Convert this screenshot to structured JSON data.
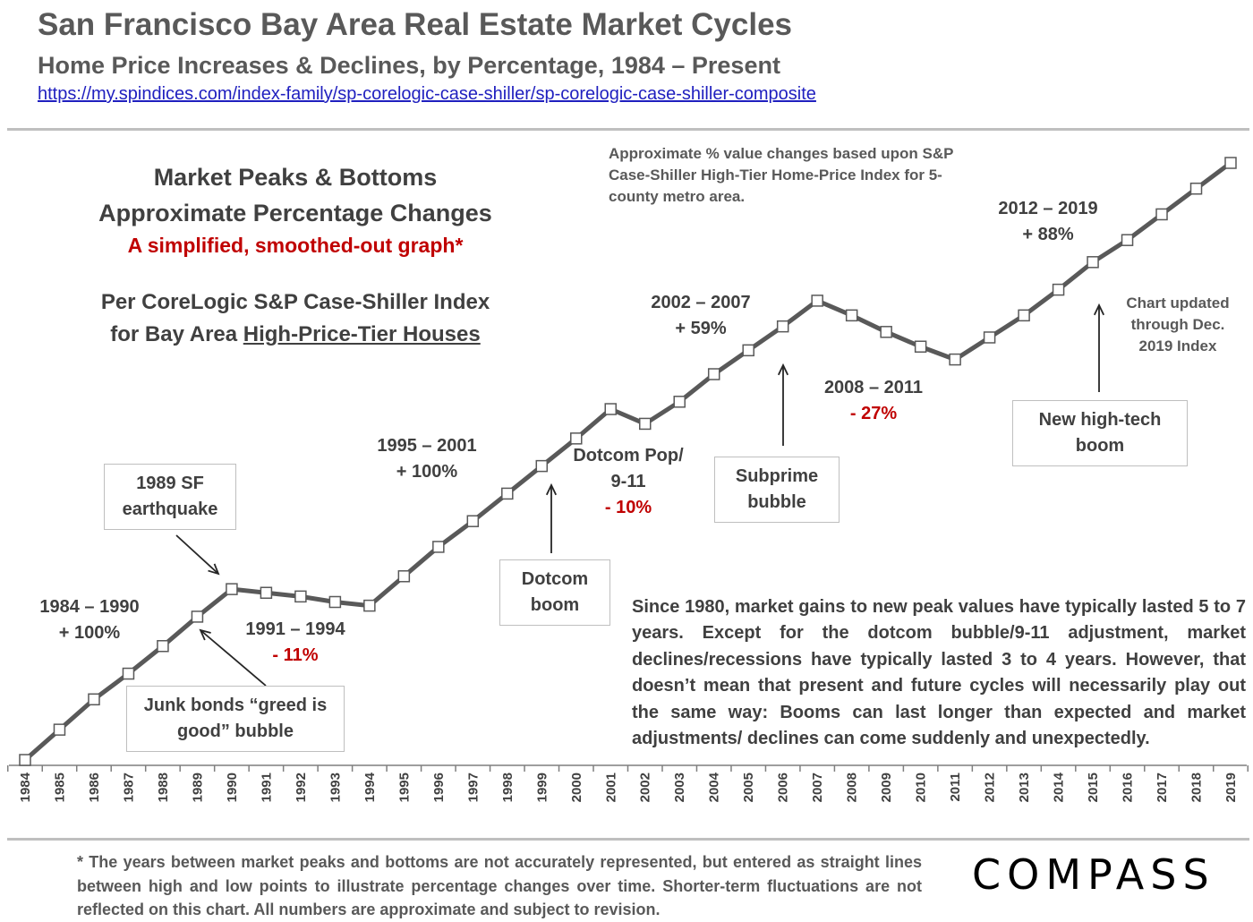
{
  "header": {
    "title": "San Francisco Bay Area Real Estate Market Cycles",
    "subtitle": "Home Price Increases & Declines, by Percentage, 1984 – Present",
    "link": "https://my.spindices.com/index-family/sp-corelogic-case-shiller/sp-corelogic-case-shiller-composite"
  },
  "heading_block": {
    "line1": "Market Peaks & Bottoms",
    "line2": "Approximate Percentage Changes",
    "line3": "A simplified, smoothed-out graph*",
    "line4": "Per CoreLogic S&P Case-Shiller Index",
    "line5_prefix": "for Bay Area ",
    "line5_underlined": "High-Price-Tier Houses"
  },
  "notes": {
    "method": "Approximate % value changes based upon S&P Case-Shiller High-Tier Home-Price Index for 5-county metro area.",
    "updated": "Chart updated through Dec. 2019 Index",
    "summary": "Since 1980, market gains to new peak values have typically lasted 5 to 7 years. Except for the dotcom bubble/9-11 adjustment, market declines/recessions have typically lasted 3 to 4 years. However, that doesn’t mean that present and future cycles will necessarily play out the same way: Booms can last longer than expected and market adjustments/ declines can come suddenly and unexpectedly.",
    "footnote": "* The years between market peaks and bottoms are not accurately represented, but entered as straight lines between high and low points to illustrate percentage changes over time. Shorter-term fluctuations are not reflected on this chart. All numbers are approximate and subject to revision."
  },
  "logo": "COMPASS",
  "cycles": {
    "c1": {
      "years": "1984 – 1990",
      "pct": "+ 100%"
    },
    "c2": {
      "years": "1991 – 1994",
      "pct": "- 11%"
    },
    "c3": {
      "years": "1995 – 2001",
      "pct": "+ 100%"
    },
    "c4": {
      "title": "Dotcom Pop/",
      "sub": "9-11",
      "pct": "- 10%"
    },
    "c5": {
      "years": "2002 – 2007",
      "pct": "+ 59%"
    },
    "c6": {
      "years": "2008 – 2011",
      "pct": "- 27%"
    },
    "c7": {
      "years": "2012 – 2019",
      "pct": "+ 88%"
    }
  },
  "events": {
    "earthquake": {
      "line1": "1989 SF",
      "line2": "earthquake"
    },
    "junk_bonds": {
      "line1": "Junk bonds “greed is",
      "line2": "good” bubble"
    },
    "dotcom_boom": {
      "line1": "Dotcom",
      "line2": "boom"
    },
    "subprime": {
      "line1": "Subprime",
      "line2": "bubble"
    },
    "hightech": {
      "line1": "New high-tech",
      "line2": "boom"
    }
  },
  "chart_data": {
    "type": "line",
    "x": [
      1984,
      1985,
      1986,
      1987,
      1988,
      1989,
      1990,
      1991,
      1992,
      1993,
      1994,
      1995,
      1996,
      1997,
      1998,
      1999,
      2000,
      2001,
      2002,
      2003,
      2004,
      2005,
      2006,
      2007,
      2008,
      2009,
      2010,
      2011,
      2012,
      2013,
      2014,
      2015,
      2016,
      2017,
      2018,
      2019
    ],
    "series": [
      {
        "values": [
          0.0,
          1.65,
          3.3,
          4.7,
          6.2,
          7.8,
          9.3,
          9.1,
          8.9,
          8.6,
          8.4,
          10.0,
          11.6,
          13.0,
          14.5,
          16.0,
          17.5,
          19.1,
          18.3,
          19.5,
          21.0,
          22.3,
          23.6,
          25.0,
          24.2,
          23.3,
          22.5,
          21.8,
          23.0,
          24.2,
          25.6,
          27.1,
          28.3,
          29.7,
          31.1,
          32.5
        ]
      }
    ],
    "ylim": [
      0,
      32.5
    ],
    "xlim": [
      1984,
      2019
    ],
    "grid": false,
    "legend": "none",
    "colors": {
      "line": "#595959",
      "marker_fill": "#ffffff",
      "marker_stroke": "#595959",
      "negative_text": "#c00000"
    }
  }
}
